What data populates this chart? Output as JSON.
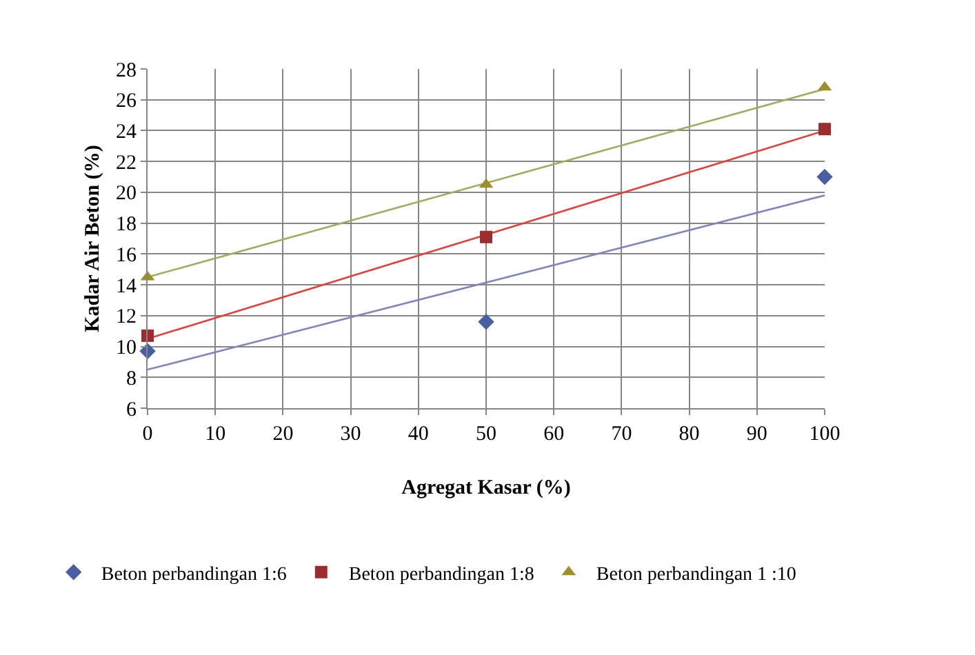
{
  "chart_data": {
    "type": "scatter",
    "xlabel": "Agregat Kasar (%)",
    "ylabel": "Kadar Air Beton (%)",
    "xlim": [
      0,
      100
    ],
    "xticks": [
      0,
      10,
      20,
      30,
      40,
      50,
      60,
      70,
      80,
      90,
      100
    ],
    "ylim": [
      6,
      28
    ],
    "yticks": [
      6,
      8,
      10,
      12,
      14,
      16,
      18,
      20,
      22,
      24,
      26,
      28
    ],
    "grid": true,
    "legend": "bottom",
    "series": [
      {
        "name": "Beton perbandingan 1:6",
        "color": "#4a5fa0",
        "marker": "diamond",
        "x": [
          0,
          50,
          100
        ],
        "values": [
          9.7,
          11.6,
          21.0
        ]
      },
      {
        "name": "Beton perbandingan 1:8",
        "color": "#9b2d30",
        "marker": "square",
        "x": [
          0,
          50,
          100
        ],
        "values": [
          10.7,
          17.1,
          24.1
        ]
      },
      {
        "name": "Beton perbandingan 1 :10",
        "color": "#9a8f2a",
        "marker": "triangle",
        "x": [
          0,
          50,
          100
        ],
        "values": [
          14.5,
          20.5,
          26.8
        ]
      },
      {
        "type": "line",
        "color": "#7f86b8",
        "x": [
          0,
          100
        ],
        "values": [
          8.5,
          19.8
        ]
      },
      {
        "type": "line",
        "color": "#e0403a",
        "x": [
          0,
          100
        ],
        "values": [
          10.5,
          24.0
        ]
      },
      {
        "type": "line",
        "color": "#a4aa60",
        "x": [
          0,
          100
        ],
        "values": [
          14.5,
          26.7
        ]
      }
    ]
  }
}
